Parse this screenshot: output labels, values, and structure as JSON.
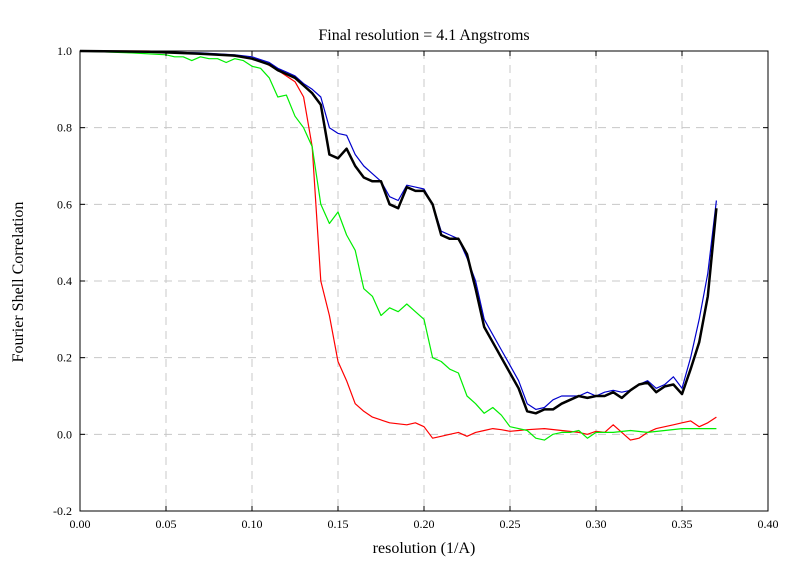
{
  "chart_data": {
    "type": "line",
    "title": "Final resolution =   4.1 Angstroms",
    "xlabel": "resolution (1/A)",
    "ylabel": "Fourier Shell Correlation",
    "xlim": [
      0.0,
      0.4
    ],
    "ylim": [
      -0.2,
      1.0
    ],
    "xticks": [
      "0.00",
      "0.05",
      "0.10",
      "0.15",
      "0.20",
      "0.25",
      "0.30",
      "0.35",
      "0.40"
    ],
    "xtick_values": [
      0.0,
      0.05,
      0.1,
      0.15,
      0.2,
      0.25,
      0.3,
      0.35,
      0.4
    ],
    "yticks": [
      "-0.2",
      "0.0",
      "0.2",
      "0.4",
      "0.6",
      "0.8",
      "1.0"
    ],
    "ytick_values": [
      -0.2,
      0.0,
      0.2,
      0.4,
      0.6,
      0.8,
      1.0
    ],
    "grid": true,
    "legend": "none",
    "series": [
      {
        "color": "#ff0000",
        "x": [
          0.0,
          0.04,
          0.08,
          0.095,
          0.105,
          0.115,
          0.125,
          0.13,
          0.135,
          0.14,
          0.145,
          0.15,
          0.155,
          0.16,
          0.165,
          0.17,
          0.18,
          0.19,
          0.195,
          0.2,
          0.205,
          0.21,
          0.215,
          0.22,
          0.225,
          0.23,
          0.235,
          0.24,
          0.245,
          0.25,
          0.255,
          0.26,
          0.27,
          0.28,
          0.29,
          0.295,
          0.3,
          0.305,
          0.31,
          0.315,
          0.32,
          0.325,
          0.33,
          0.335,
          0.34,
          0.345,
          0.35,
          0.355,
          0.36,
          0.365,
          0.37
        ],
        "y": [
          1.0,
          1.0,
          0.99,
          0.985,
          0.975,
          0.95,
          0.92,
          0.88,
          0.75,
          0.4,
          0.31,
          0.19,
          0.14,
          0.08,
          0.06,
          0.045,
          0.03,
          0.025,
          0.03,
          0.02,
          -0.01,
          -0.005,
          0.0,
          0.005,
          -0.005,
          0.005,
          0.01,
          0.015,
          0.012,
          0.008,
          0.01,
          0.012,
          0.015,
          0.01,
          0.005,
          0.0,
          0.008,
          0.005,
          0.025,
          0.005,
          -0.015,
          -0.01,
          0.005,
          0.015,
          0.02,
          0.025,
          0.03,
          0.035,
          0.02,
          0.03,
          0.045
        ]
      },
      {
        "color": "#00ee00",
        "x": [
          0.0,
          0.03,
          0.05,
          0.055,
          0.06,
          0.065,
          0.07,
          0.075,
          0.08,
          0.085,
          0.09,
          0.095,
          0.1,
          0.105,
          0.11,
          0.115,
          0.12,
          0.125,
          0.13,
          0.135,
          0.14,
          0.145,
          0.15,
          0.155,
          0.16,
          0.165,
          0.17,
          0.175,
          0.18,
          0.185,
          0.19,
          0.195,
          0.2,
          0.205,
          0.21,
          0.215,
          0.22,
          0.225,
          0.23,
          0.235,
          0.24,
          0.245,
          0.25,
          0.255,
          0.26,
          0.265,
          0.27,
          0.275,
          0.28,
          0.285,
          0.29,
          0.295,
          0.3,
          0.31,
          0.32,
          0.33,
          0.34,
          0.35,
          0.36,
          0.37
        ],
        "y": [
          1.0,
          0.995,
          0.99,
          0.985,
          0.985,
          0.975,
          0.985,
          0.98,
          0.98,
          0.97,
          0.98,
          0.975,
          0.96,
          0.955,
          0.93,
          0.88,
          0.885,
          0.83,
          0.8,
          0.75,
          0.6,
          0.55,
          0.58,
          0.52,
          0.48,
          0.38,
          0.36,
          0.31,
          0.33,
          0.32,
          0.34,
          0.32,
          0.3,
          0.2,
          0.19,
          0.17,
          0.16,
          0.1,
          0.08,
          0.055,
          0.07,
          0.05,
          0.02,
          0.015,
          0.01,
          -0.01,
          -0.015,
          0.0,
          0.005,
          0.005,
          0.01,
          -0.01,
          0.005,
          0.005,
          0.01,
          0.005,
          0.01,
          0.015,
          0.015,
          0.015
        ]
      },
      {
        "color": "#0000cc",
        "x": [
          0.0,
          0.04,
          0.07,
          0.09,
          0.1,
          0.11,
          0.115,
          0.12,
          0.125,
          0.13,
          0.135,
          0.14,
          0.145,
          0.15,
          0.155,
          0.16,
          0.165,
          0.17,
          0.175,
          0.18,
          0.185,
          0.19,
          0.195,
          0.2,
          0.205,
          0.21,
          0.215,
          0.22,
          0.225,
          0.23,
          0.235,
          0.24,
          0.245,
          0.25,
          0.255,
          0.26,
          0.265,
          0.27,
          0.275,
          0.28,
          0.285,
          0.29,
          0.295,
          0.3,
          0.305,
          0.31,
          0.315,
          0.32,
          0.325,
          0.33,
          0.335,
          0.34,
          0.345,
          0.35,
          0.355,
          0.36,
          0.365,
          0.37
        ],
        "y": [
          1.0,
          0.998,
          0.995,
          0.99,
          0.985,
          0.97,
          0.955,
          0.945,
          0.935,
          0.915,
          0.9,
          0.88,
          0.8,
          0.785,
          0.78,
          0.73,
          0.7,
          0.68,
          0.66,
          0.62,
          0.61,
          0.65,
          0.645,
          0.64,
          0.6,
          0.53,
          0.52,
          0.51,
          0.46,
          0.4,
          0.3,
          0.26,
          0.22,
          0.18,
          0.14,
          0.08,
          0.065,
          0.07,
          0.09,
          0.1,
          0.1,
          0.1,
          0.11,
          0.1,
          0.11,
          0.115,
          0.11,
          0.115,
          0.13,
          0.14,
          0.12,
          0.13,
          0.15,
          0.12,
          0.2,
          0.3,
          0.42,
          0.61
        ]
      },
      {
        "color": "#000000",
        "x": [
          0.0,
          0.04,
          0.07,
          0.09,
          0.1,
          0.11,
          0.115,
          0.12,
          0.125,
          0.13,
          0.135,
          0.14,
          0.145,
          0.15,
          0.155,
          0.16,
          0.165,
          0.17,
          0.175,
          0.18,
          0.185,
          0.19,
          0.195,
          0.2,
          0.205,
          0.21,
          0.215,
          0.22,
          0.225,
          0.23,
          0.235,
          0.24,
          0.245,
          0.25,
          0.255,
          0.26,
          0.265,
          0.27,
          0.275,
          0.28,
          0.285,
          0.29,
          0.295,
          0.3,
          0.305,
          0.31,
          0.315,
          0.32,
          0.325,
          0.33,
          0.335,
          0.34,
          0.345,
          0.35,
          0.355,
          0.36,
          0.365,
          0.37
        ],
        "y": [
          1.0,
          0.998,
          0.993,
          0.988,
          0.98,
          0.965,
          0.95,
          0.94,
          0.93,
          0.91,
          0.89,
          0.86,
          0.73,
          0.72,
          0.745,
          0.7,
          0.67,
          0.66,
          0.66,
          0.6,
          0.59,
          0.645,
          0.635,
          0.635,
          0.6,
          0.52,
          0.51,
          0.51,
          0.47,
          0.38,
          0.28,
          0.24,
          0.2,
          0.16,
          0.12,
          0.06,
          0.055,
          0.065,
          0.065,
          0.08,
          0.09,
          0.1,
          0.095,
          0.1,
          0.1,
          0.11,
          0.095,
          0.115,
          0.13,
          0.135,
          0.11,
          0.125,
          0.13,
          0.105,
          0.17,
          0.24,
          0.36,
          0.59
        ]
      }
    ]
  }
}
